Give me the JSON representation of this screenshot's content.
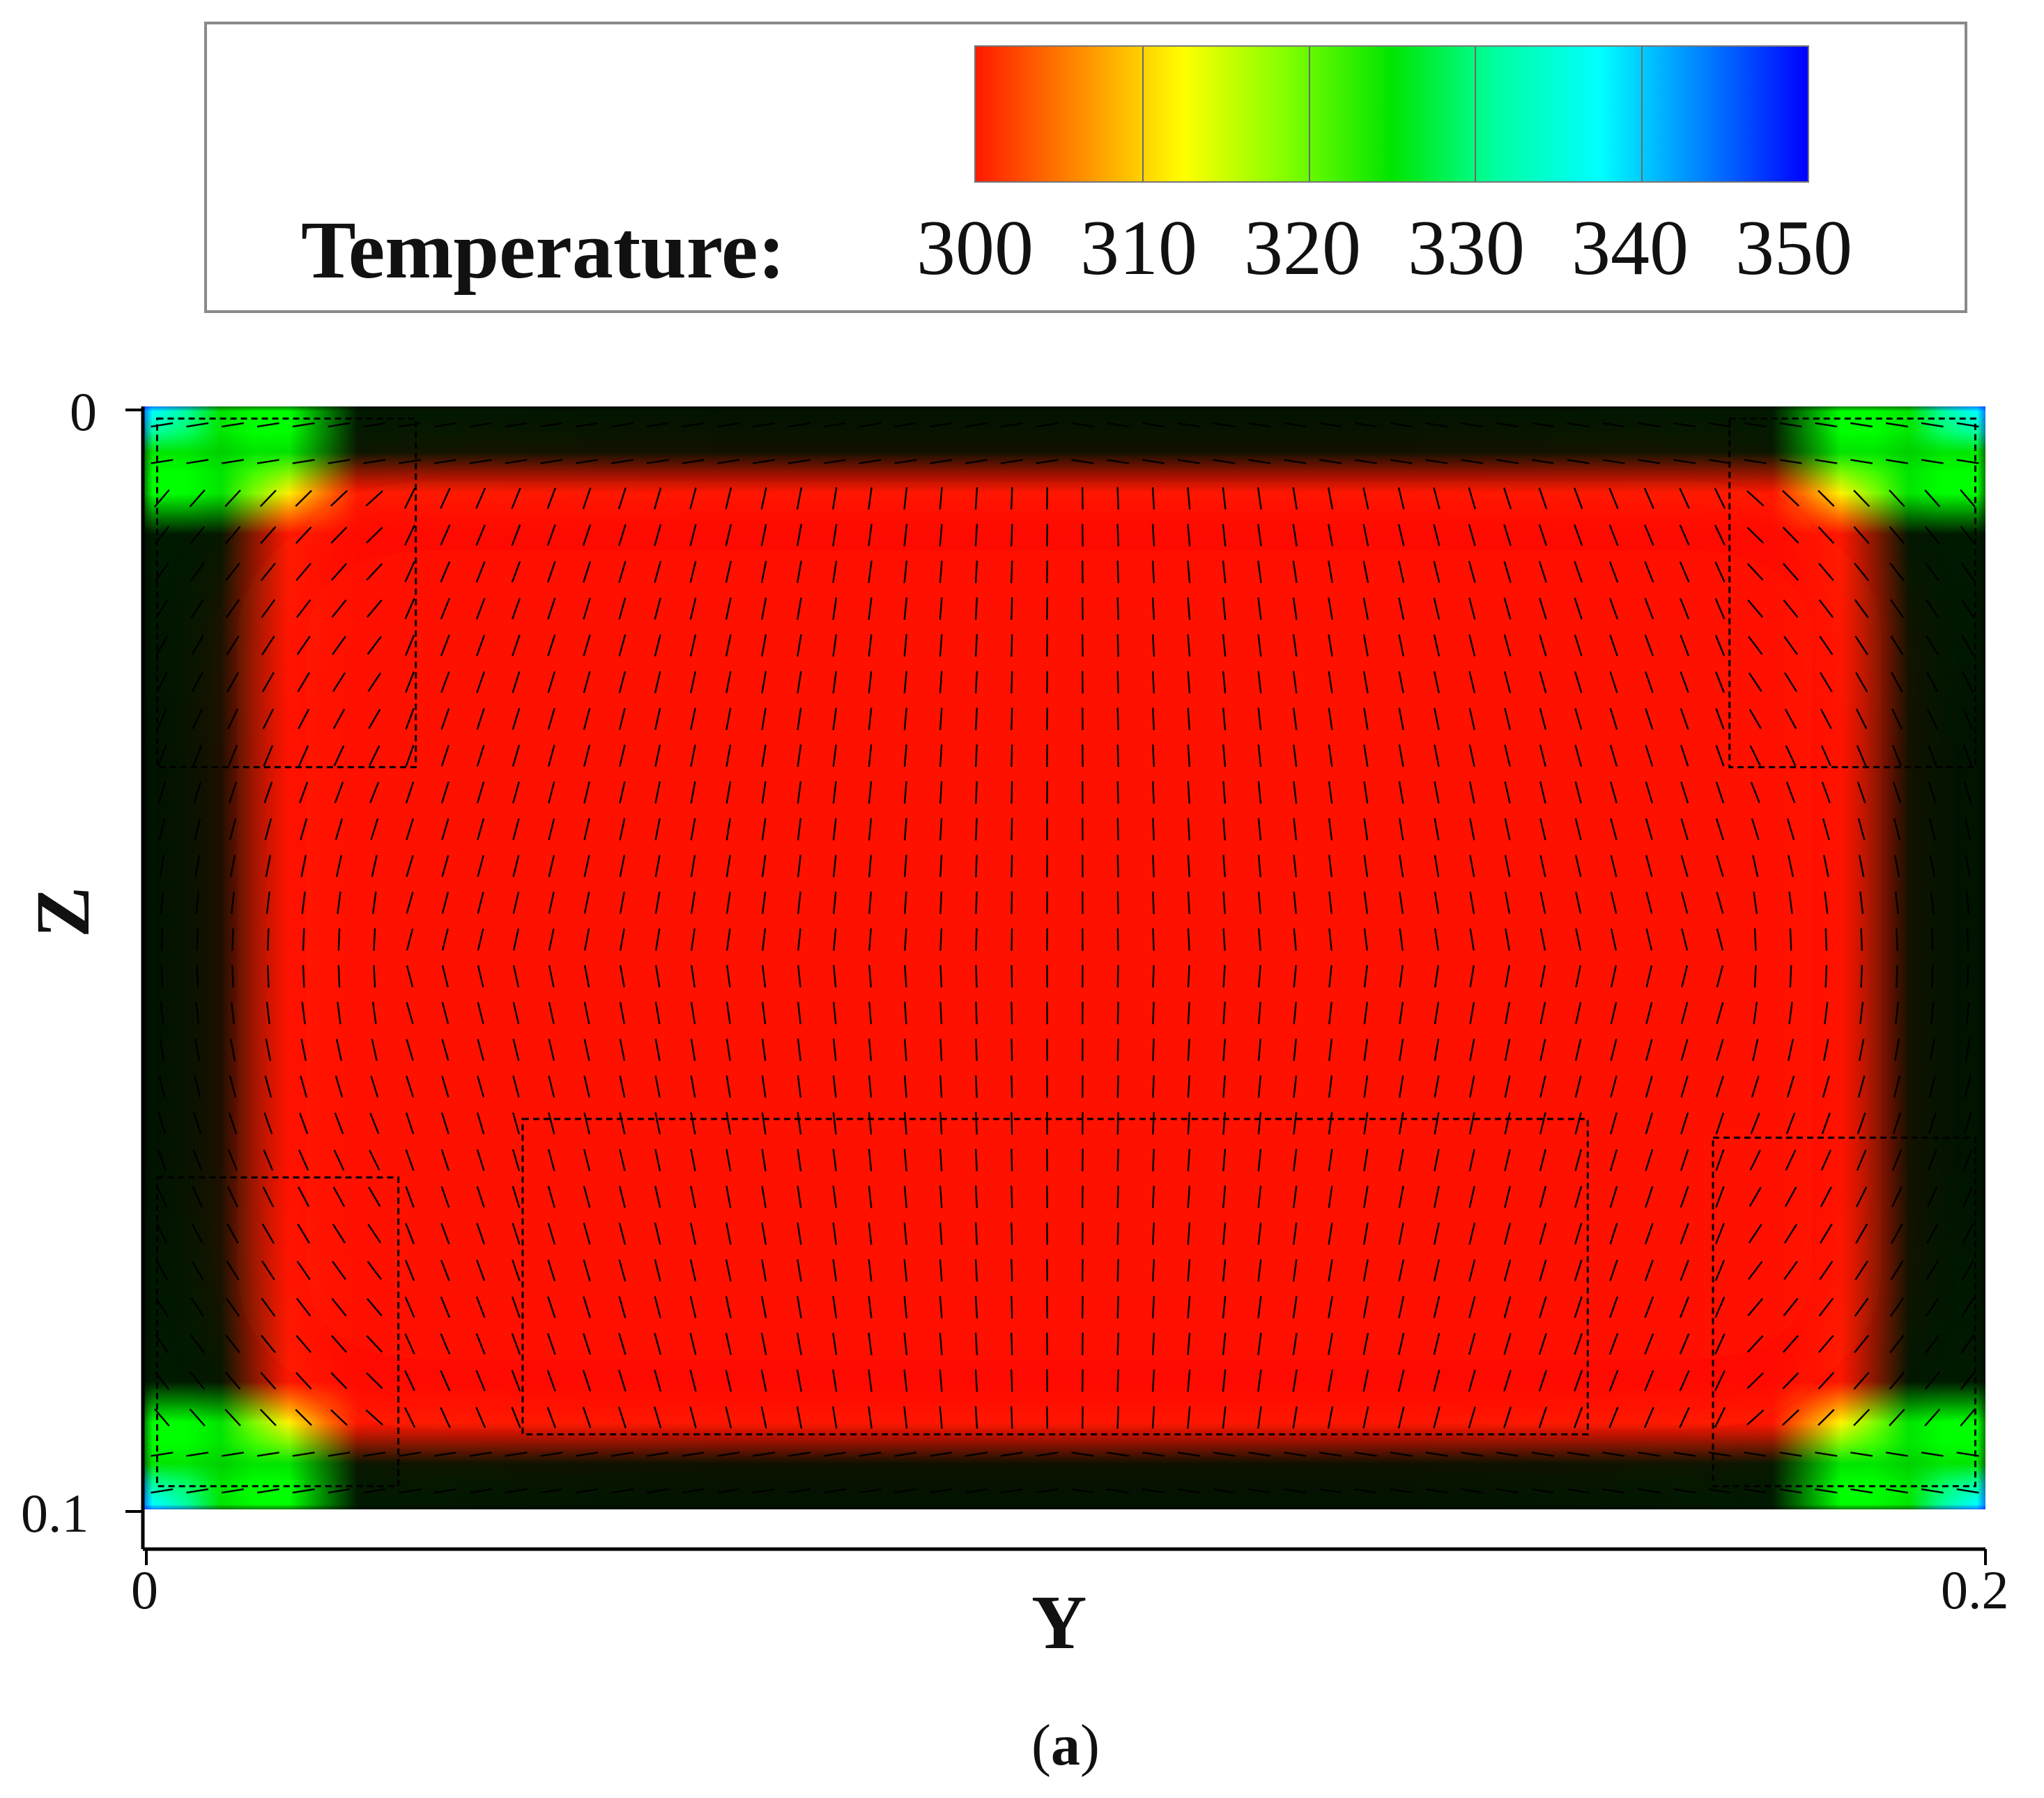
{
  "chart_data": {
    "type": "heatmap",
    "plot_kind": "temperature contour with velocity vectors",
    "legend": {
      "title": "Temperature:",
      "ticks": [
        "300",
        "310",
        "320",
        "330",
        "340",
        "350"
      ],
      "tick_values": [
        300,
        310,
        320,
        330,
        340,
        350
      ],
      "colors": [
        "#ff1a00",
        "#ff8c00",
        "#ffff00",
        "#80ff00",
        "#00e600",
        "#00ffa0",
        "#00ffff",
        "#0080ff",
        "#0000ff"
      ]
    },
    "xlabel": "Y",
    "ylabel": "Z",
    "x_ticks": [
      "0",
      "0.2"
    ],
    "y_ticks": [
      "0",
      "0.1"
    ],
    "xlim": [
      0,
      0.2
    ],
    "ylim": [
      0.1,
      0
    ],
    "temperature_range": [
      300,
      350
    ],
    "wall_temperature": 350,
    "core_temperature": 300,
    "dashed_regions_yz": [
      {
        "y": [
          0.0014,
          0.0295
        ],
        "z": [
          0.0011,
          0.0327
        ]
      },
      {
        "y": [
          0.1722,
          0.1989
        ],
        "z": [
          0.0011,
          0.0327
        ]
      },
      {
        "y": [
          0.0014,
          0.0276
        ],
        "z": [
          0.0699,
          0.0979
        ]
      },
      {
        "y": [
          0.0411,
          0.1568
        ],
        "z": [
          0.0646,
          0.0932
        ]
      },
      {
        "y": [
          0.1704,
          0.1989
        ],
        "z": [
          0.0663,
          0.0979
        ]
      }
    ]
  },
  "caption": {
    "open": "(",
    "label": "a",
    "close": ")"
  },
  "colors": {
    "axis": "#000000",
    "vector": "#000000"
  }
}
